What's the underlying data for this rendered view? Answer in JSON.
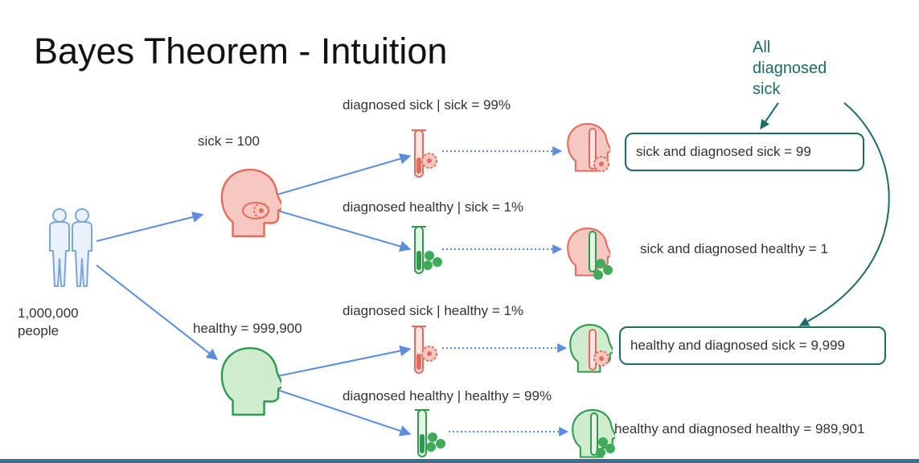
{
  "title": "Bayes Theorem - Intuition",
  "callout": [
    "All",
    "diagnosed",
    "sick"
  ],
  "population": [
    "1,000,000",
    "people"
  ],
  "groups": {
    "sick": "sick = 100",
    "healthy": "healthy = 999,900"
  },
  "tests": {
    "sick_diag_sick": "diagnosed sick | sick = 99%",
    "sick_diag_healthy": "diagnosed healthy | sick = 1%",
    "healthy_diag_sick": "diagnosed sick | healthy = 1%",
    "healthy_diag_healthy": "diagnosed healthy | healthy = 99%"
  },
  "outcomes": {
    "sick_and_diag_sick": "sick and diagnosed sick = 99",
    "sick_and_diag_healthy": "sick and diagnosed healthy = 1",
    "healthy_and_diag_sick": "healthy and diagnosed sick = 9,999",
    "healthy_and_diag_healthy": "healthy and diagnosed healthy = 989,901"
  },
  "colors": {
    "arrow": "#5b8ee0",
    "teal": "#1d6b66",
    "sick_fill": "#f7c8c2",
    "sick_stroke": "#e36b5e",
    "healthy_fill": "#cfeccf",
    "healthy_stroke": "#2e9a4e",
    "people_fill": "#e9f1fb",
    "people_stroke": "#7aa6dc"
  }
}
